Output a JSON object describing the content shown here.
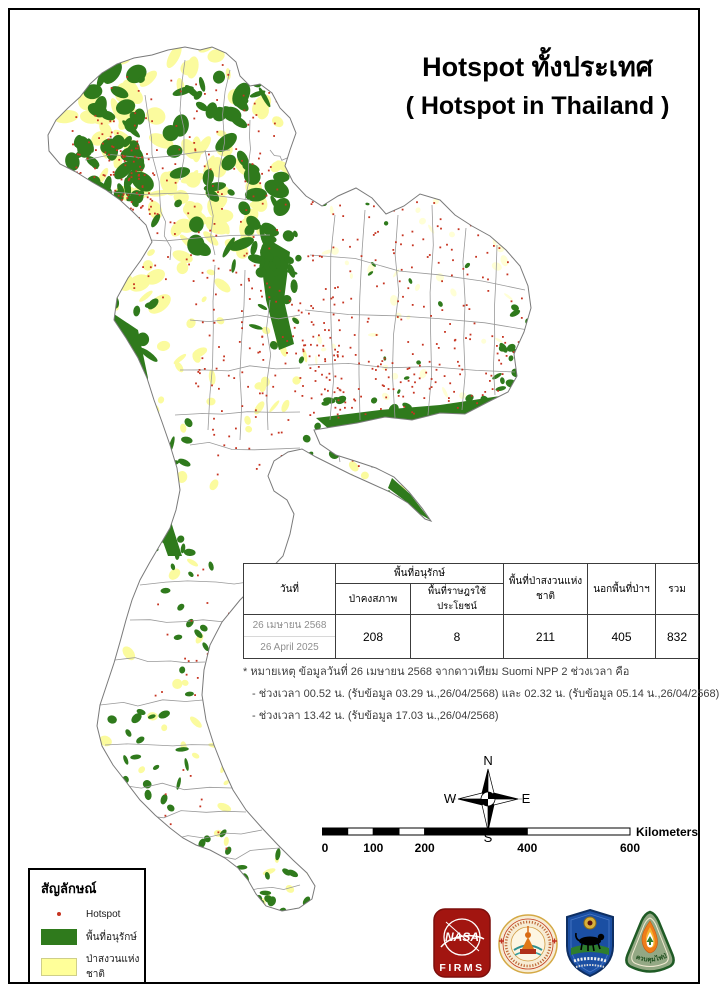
{
  "title": {
    "line1": "Hotspot ทั้งประเทศ",
    "line2": "( Hotspot in Thailand )"
  },
  "table": {
    "headers": {
      "date": "วันที่",
      "conservation_group": "พื้นที่อนุรักษ์",
      "intact_forest": "ป่าคงสภาพ",
      "people_use": "พื้นที่ราษฎรใช้ประโยชน์",
      "national_reserved_forest": "พื้นที่ป่าสงวนแห่งชาติ",
      "outside_forest": "นอกพื้นที่ป่าฯ",
      "total": "รวม"
    },
    "row": {
      "date_th": "26 เมษายน 2568",
      "date_en": "26 April 2025",
      "intact_forest": "208",
      "people_use": "8",
      "national_reserved_forest": "211",
      "outside_forest": "405",
      "total": "832"
    }
  },
  "notes": {
    "line1": "* หมายเหตุ ข้อมูลวันที่ 26 เมษายน 2568 จากดาวเทียม Suomi NPP 2 ช่วงเวลา คือ",
    "line2": "- ช่วงเวลา 00.52 น. (รับข้อมูล 03.29 น.,26/04/2568) และ 02.32 น. (รับข้อมูล 05.14 น.,26/04/2568)",
    "line3": "- ช่วงเวลา 13.42 น. (รับข้อมูล 17.03 น.,26/04/2568)"
  },
  "legend": {
    "title": "สัญลักษณ์",
    "items": [
      {
        "label": "Hotspot",
        "type": "dot"
      },
      {
        "label": "พื้นที่อนุรักษ์",
        "type": "swatch",
        "color": "#2f7a1c"
      },
      {
        "label": "ป่าสงวนแห่งชาติ",
        "type": "swatch",
        "color": "#ffff99"
      }
    ]
  },
  "compass": {
    "n": "N",
    "e": "E",
    "s": "S",
    "w": "W"
  },
  "scalebar": {
    "labels": [
      "0",
      "100",
      "200",
      "400",
      "600"
    ],
    "unit": "Kilometers"
  },
  "logos": [
    {
      "name": "nasa-firms",
      "text_top": "NASA",
      "text_bottom": "FIRMS"
    },
    {
      "name": "royal-seal"
    },
    {
      "name": "wildlife-shield"
    },
    {
      "name": "forest-fire-control",
      "text": "ควบคุมไฟป่า"
    }
  ],
  "map": {
    "colors": {
      "conservation": "#2f7a1c",
      "reserved": "#fbfb9e",
      "reserved_pale": "#ffffd6",
      "hotspot": "#c63421",
      "boundary": "#999999",
      "coast": "#7a7a7a"
    }
  }
}
